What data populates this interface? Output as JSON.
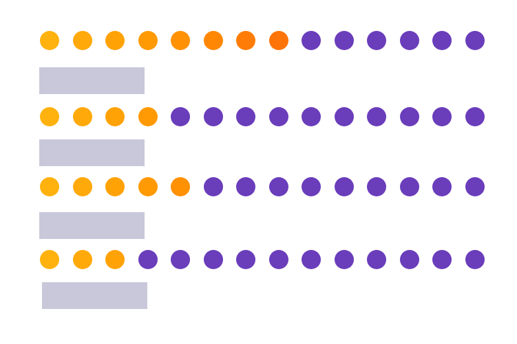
{
  "colors": {
    "active_palette": [
      "#ffb20e",
      "#ffa90a",
      "#ffa206",
      "#ff9a04",
      "#ff9103",
      "#ff8704",
      "#ff7d06",
      "#ff7408"
    ],
    "inactive": "#6a3dbb",
    "placeholder_bar": "#c9c8da",
    "background": "#ffffff"
  },
  "rows": [
    {
      "total": 14,
      "filled": 8
    },
    {
      "total": 14,
      "filled": 4
    },
    {
      "total": 14,
      "filled": 5
    },
    {
      "total": 14,
      "filled": 3
    }
  ]
}
